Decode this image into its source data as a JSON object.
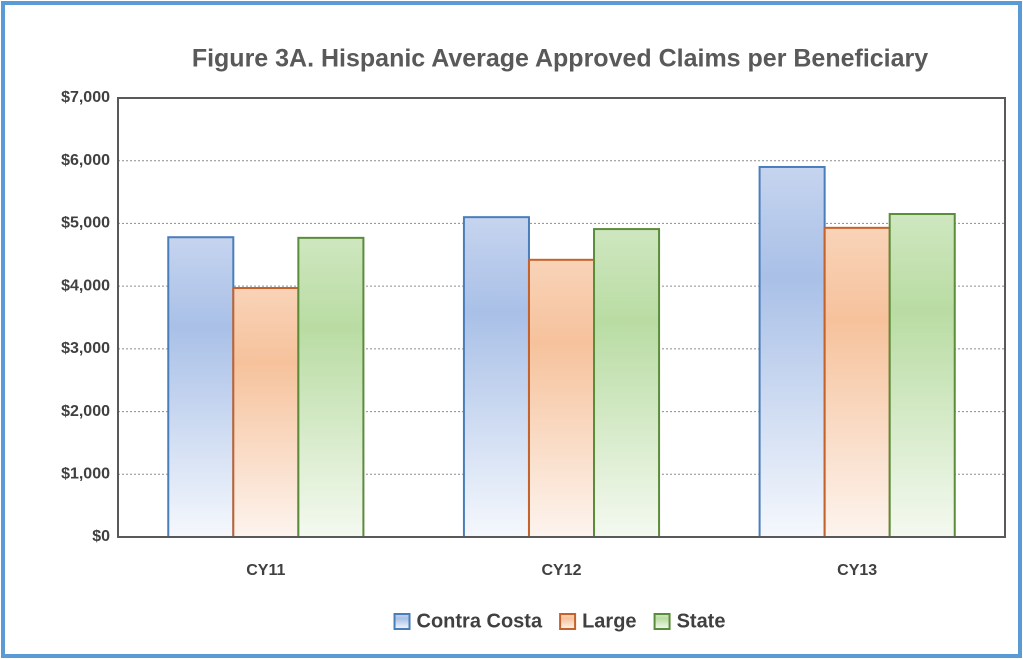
{
  "chart_data": {
    "type": "bar",
    "title": "Figure 3A. Hispanic Average Approved Claims per Beneficiary",
    "categories": [
      "CY11",
      "CY12",
      "CY13"
    ],
    "series": [
      {
        "name": "Contra Costa",
        "color": "#4a7ebb",
        "values": [
          4780,
          5100,
          5900
        ]
      },
      {
        "name": "Large",
        "color": "#c5612a",
        "values": [
          3970,
          4420,
          4930
        ]
      },
      {
        "name": "State",
        "color": "#5b8c3a",
        "values": [
          4770,
          4910,
          5150
        ]
      }
    ],
    "ylim": [
      0,
      7000
    ],
    "yticks": [
      {
        "value": 0,
        "label": "$0"
      },
      {
        "value": 1000,
        "label": "$1,000"
      },
      {
        "value": 2000,
        "label": "$2,000"
      },
      {
        "value": 3000,
        "label": "$3,000"
      },
      {
        "value": 4000,
        "label": "$4,000"
      },
      {
        "value": 5000,
        "label": "$5,000"
      },
      {
        "value": 6000,
        "label": "$6,000"
      },
      {
        "value": 7000,
        "label": "$7,000"
      }
    ],
    "grid": true,
    "legend": "bottom"
  }
}
